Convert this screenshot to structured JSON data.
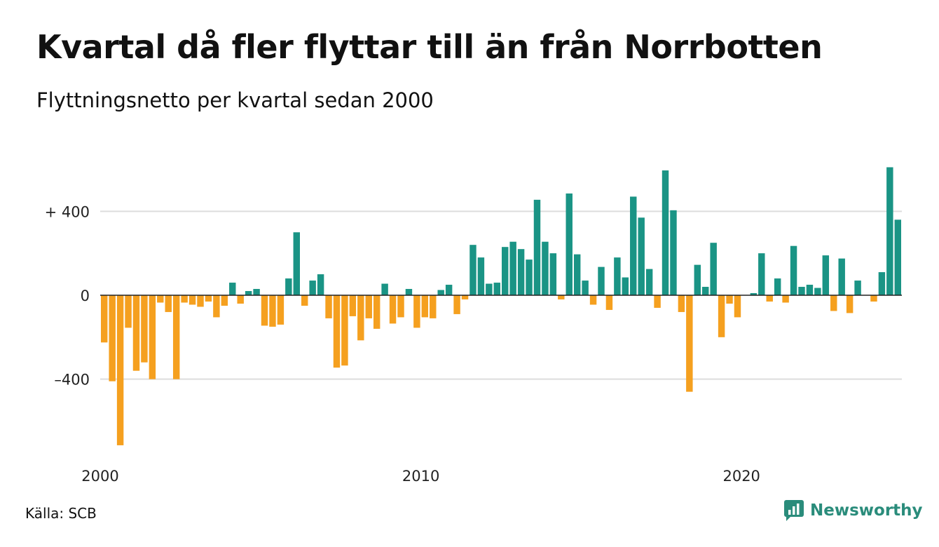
{
  "title": "Kvartal då fler flyttar till än från Norrbotten",
  "subtitle": "Flyttningsnetto per kvartal sedan 2000",
  "source": "Källa: SCB",
  "brand": {
    "name": "Newsworthy",
    "icon": "newsworthy-logo-icon"
  },
  "colors": {
    "positive": "#1a9485",
    "negative": "#f5a01f",
    "grid": "#dddddd",
    "zero_line": "#222222"
  },
  "chart_data": {
    "type": "bar",
    "title": "Kvartal då fler flyttar till än från Norrbotten",
    "subtitle": "Flyttningsnetto per kvartal sedan 2000",
    "start": "2000 Q1",
    "frequency": "quarterly",
    "x_ticks": [
      "2000",
      "2010",
      "2020"
    ],
    "y_ticks": [
      {
        "value": 400,
        "label": "+ 400"
      },
      {
        "value": 0,
        "label": "0"
      },
      {
        "value": -400,
        "label": "–400"
      }
    ],
    "ylim": [
      -720,
      640
    ],
    "grid": true,
    "values": [
      -225,
      -410,
      -715,
      -155,
      -360,
      -320,
      -400,
      -35,
      -80,
      -400,
      -35,
      -45,
      -55,
      -30,
      -105,
      -50,
      60,
      -40,
      20,
      30,
      -145,
      -150,
      -140,
      80,
      300,
      -50,
      70,
      100,
      -110,
      -345,
      -335,
      -100,
      -215,
      -110,
      -160,
      55,
      -135,
      -105,
      30,
      -155,
      -105,
      -110,
      25,
      50,
      -90,
      -20,
      240,
      180,
      55,
      60,
      230,
      255,
      220,
      170,
      455,
      255,
      200,
      -20,
      485,
      195,
      70,
      -45,
      135,
      -70,
      180,
      85,
      470,
      370,
      125,
      -60,
      595,
      405,
      -80,
      -460,
      145,
      40,
      250,
      -200,
      -40,
      -105,
      0,
      10,
      200,
      -30,
      80,
      -35,
      235,
      40,
      50,
      35,
      190,
      -75,
      175,
      -85,
      70,
      0,
      -30,
      110,
      610,
      360
    ]
  }
}
